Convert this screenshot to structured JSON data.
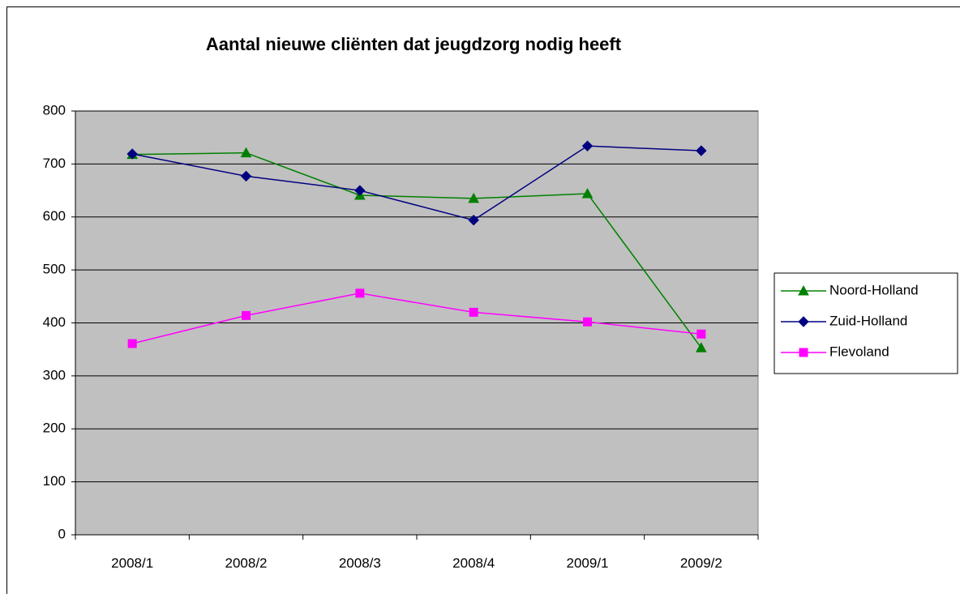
{
  "chart_data": {
    "type": "line",
    "title": "Aantal nieuwe cliënten dat jeugdzorg nodig heeft",
    "categories": [
      "2008/1",
      "2008/2",
      "2008/3",
      "2008/4",
      "2009/1",
      "2009/2"
    ],
    "series": [
      {
        "name": "Noord-Holland",
        "color": "#008000",
        "marker": "triangle",
        "values": [
          718,
          721,
          641,
          635,
          644,
          353
        ]
      },
      {
        "name": "Zuid-Holland",
        "color": "#000080",
        "marker": "diamond",
        "values": [
          719,
          677,
          650,
          594,
          734,
          725
        ]
      },
      {
        "name": "Flevoland",
        "color": "#ff00ff",
        "marker": "square",
        "values": [
          361,
          414,
          456,
          420,
          402,
          379
        ]
      }
    ],
    "ylim": [
      0,
      800
    ],
    "yticks": [
      0,
      100,
      200,
      300,
      400,
      500,
      600,
      700,
      800
    ],
    "grid": true,
    "legend": "right",
    "plot_background": "#c0c0c0"
  }
}
